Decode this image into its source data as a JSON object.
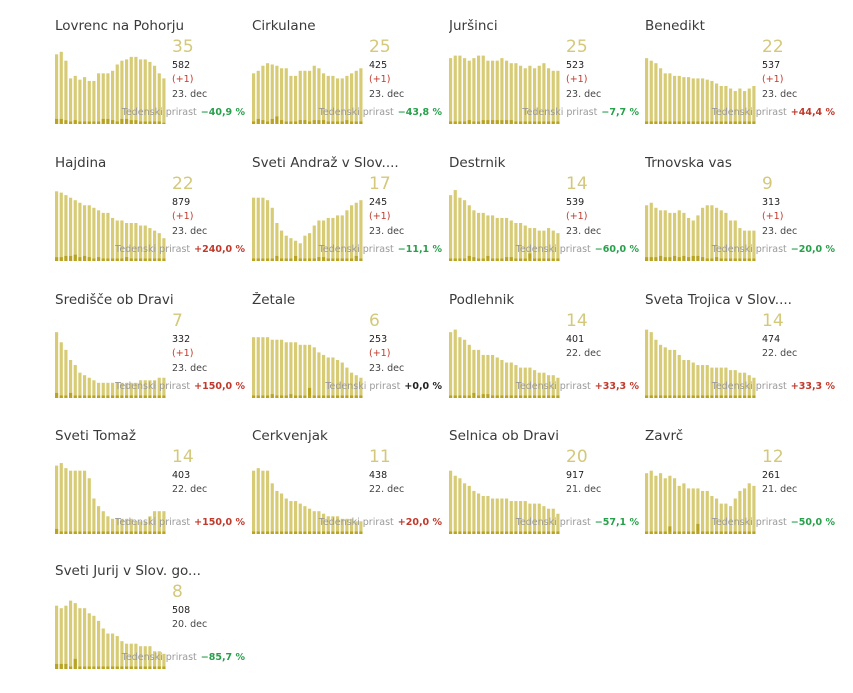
{
  "footer_label": "Tedenski prirast",
  "colors": {
    "bar": "#d8cb75",
    "bar_new": "#b8a322",
    "big_number": "#d4c87a",
    "positive": "#c0392b",
    "negative": "#27a04b"
  },
  "chart_data": [
    {
      "type": "bar",
      "title": "Lovrenc na Pohorju",
      "active": "35",
      "total": "582",
      "delta": "(+1)",
      "date": "23. dec",
      "weekly": "−40,9 %",
      "trend": "neg",
      "values": [
        55,
        57,
        50,
        36,
        38,
        35,
        37,
        34,
        34,
        40,
        40,
        40,
        42,
        47,
        50,
        51,
        53,
        53,
        51,
        51,
        49,
        46,
        40,
        36
      ],
      "daily": [
        4,
        4,
        3,
        2,
        3,
        2,
        2,
        2,
        2,
        2,
        4,
        4,
        3,
        2,
        4,
        4,
        3,
        3,
        2,
        2,
        2,
        2,
        2,
        1
      ]
    },
    {
      "type": "bar",
      "title": "Cirkulane",
      "active": "25",
      "total": "425",
      "delta": "(+1)",
      "date": "23. dec",
      "weekly": "−43,8 %",
      "trend": "neg",
      "values": [
        40,
        42,
        46,
        48,
        47,
        46,
        44,
        44,
        38,
        38,
        42,
        42,
        42,
        46,
        44,
        40,
        38,
        38,
        36,
        36,
        38,
        40,
        42,
        44
      ],
      "daily": [
        2,
        4,
        3,
        2,
        4,
        6,
        3,
        2,
        2,
        2,
        3,
        3,
        2,
        3,
        3,
        3,
        2,
        2,
        2,
        2,
        3,
        2,
        2,
        2
      ]
    },
    {
      "type": "bar",
      "title": "Juršinci",
      "active": "25",
      "total": "523",
      "delta": "(+1)",
      "date": "23. dec",
      "weekly": "−7,7 %",
      "trend": "neg",
      "values": [
        52,
        54,
        54,
        52,
        50,
        52,
        54,
        54,
        50,
        50,
        50,
        52,
        50,
        48,
        48,
        46,
        44,
        46,
        44,
        46,
        48,
        44,
        42,
        42
      ],
      "daily": [
        2,
        2,
        2,
        2,
        3,
        2,
        2,
        3,
        3,
        3,
        3,
        3,
        3,
        3,
        2,
        2,
        2,
        2,
        2,
        2,
        2,
        2,
        2,
        2
      ]
    },
    {
      "type": "bar",
      "title": "Benedikt",
      "active": "22",
      "total": "537",
      "delta": "(+1)",
      "date": "23. dec",
      "weekly": "+44,4 %",
      "trend": "pos",
      "values": [
        52,
        50,
        48,
        44,
        40,
        40,
        38,
        38,
        37,
        37,
        36,
        36,
        36,
        35,
        34,
        32,
        30,
        30,
        28,
        26,
        28,
        26,
        28,
        30
      ],
      "daily": [
        2,
        2,
        2,
        2,
        2,
        2,
        2,
        2,
        2,
        2,
        2,
        2,
        2,
        2,
        2,
        2,
        2,
        2,
        2,
        2,
        2,
        2,
        2,
        2
      ]
    },
    {
      "type": "bar",
      "title": "Hajdina",
      "active": "22",
      "total": "879",
      "delta": "(+1)",
      "date": "23. dec",
      "weekly": "+240,0 %",
      "trend": "pos",
      "values": [
        55,
        54,
        52,
        50,
        48,
        46,
        44,
        44,
        42,
        40,
        38,
        38,
        34,
        32,
        32,
        30,
        30,
        30,
        28,
        28,
        26,
        24,
        22,
        18
      ],
      "daily": [
        3,
        3,
        4,
        4,
        5,
        3,
        4,
        3,
        2,
        3,
        2,
        2,
        2,
        2,
        2,
        3,
        2,
        2,
        2,
        2,
        2,
        2,
        2,
        2
      ]
    },
    {
      "type": "bar",
      "title": "Sveti Andraž v Slov....",
      "active": "17",
      "total": "245",
      "delta": "(+1)",
      "date": "23. dec",
      "weekly": "−11,1 %",
      "trend": "neg",
      "values": [
        50,
        50,
        50,
        48,
        42,
        30,
        24,
        20,
        18,
        16,
        14,
        20,
        22,
        28,
        32,
        32,
        34,
        34,
        36,
        36,
        40,
        44,
        46,
        48
      ],
      "daily": [
        2,
        2,
        2,
        2,
        2,
        4,
        2,
        2,
        2,
        4,
        2,
        2,
        2,
        2,
        3,
        3,
        2,
        2,
        2,
        2,
        2,
        2,
        4,
        2
      ]
    },
    {
      "type": "bar",
      "title": "Destrnik",
      "active": "14",
      "total": "539",
      "delta": "(+1)",
      "date": "23. dec",
      "weekly": "−60,0 %",
      "trend": "neg",
      "values": [
        52,
        56,
        50,
        48,
        44,
        40,
        38,
        38,
        36,
        36,
        34,
        34,
        34,
        32,
        30,
        30,
        28,
        26,
        26,
        24,
        24,
        26,
        24,
        22
      ],
      "daily": [
        2,
        2,
        2,
        2,
        4,
        3,
        2,
        2,
        4,
        2,
        2,
        2,
        3,
        3,
        2,
        2,
        2,
        6,
        2,
        2,
        2,
        2,
        2,
        2
      ]
    },
    {
      "type": "bar",
      "title": "Trnovska vas",
      "active": "9",
      "total": "313",
      "delta": "(+1)",
      "date": "23. dec",
      "weekly": "−20,0 %",
      "trend": "neg",
      "values": [
        44,
        46,
        42,
        40,
        40,
        38,
        38,
        40,
        38,
        34,
        32,
        36,
        42,
        44,
        44,
        42,
        40,
        38,
        32,
        32,
        26,
        24,
        24,
        24
      ],
      "daily": [
        3,
        3,
        3,
        4,
        3,
        3,
        4,
        3,
        4,
        3,
        4,
        4,
        3,
        2,
        2,
        3,
        2,
        2,
        2,
        2,
        2,
        2,
        2,
        2
      ]
    },
    {
      "type": "bar",
      "title": "Središče ob Dravi",
      "active": "7",
      "total": "332",
      "delta": "(+1)",
      "date": "23. dec",
      "weekly": "+150,0 %",
      "trend": "pos",
      "values": [
        52,
        44,
        38,
        30,
        26,
        20,
        18,
        16,
        14,
        12,
        12,
        12,
        12,
        12,
        12,
        12,
        12,
        12,
        14,
        14,
        14,
        14,
        16,
        16
      ],
      "daily": [
        4,
        2,
        2,
        4,
        2,
        2,
        2,
        2,
        2,
        2,
        2,
        2,
        2,
        2,
        2,
        2,
        2,
        2,
        2,
        2,
        2,
        2,
        2,
        2
      ]
    },
    {
      "type": "bar",
      "title": "Žetale",
      "active": "6",
      "total": "253",
      "delta": "(+1)",
      "date": "23. dec",
      "weekly": "+0,0 %",
      "trend": "zero",
      "values": [
        48,
        48,
        48,
        48,
        46,
        46,
        46,
        44,
        44,
        44,
        42,
        42,
        42,
        40,
        36,
        34,
        32,
        32,
        30,
        28,
        24,
        20,
        18,
        16
      ],
      "daily": [
        2,
        2,
        2,
        2,
        3,
        2,
        2,
        2,
        3,
        2,
        2,
        2,
        8,
        2,
        2,
        2,
        2,
        2,
        2,
        2,
        2,
        2,
        2,
        2
      ]
    },
    {
      "type": "bar",
      "title": "Podlehnik",
      "active": "14",
      "total": "401",
      "delta": "",
      "date": "22. dec",
      "weekly": "+33,3 %",
      "trend": "pos",
      "values": [
        52,
        54,
        48,
        46,
        42,
        38,
        38,
        34,
        34,
        34,
        32,
        30,
        28,
        28,
        26,
        24,
        24,
        24,
        22,
        20,
        20,
        18,
        18,
        16
      ],
      "daily": [
        2,
        2,
        2,
        2,
        2,
        4,
        2,
        3,
        3,
        2,
        2,
        2,
        2,
        2,
        2,
        2,
        2,
        2,
        2,
        2,
        2,
        2,
        2,
        2
      ]
    },
    {
      "type": "bar",
      "title": "Sveta Trojica v Slov....",
      "active": "14",
      "total": "474",
      "delta": "",
      "date": "22. dec",
      "weekly": "+33,3 %",
      "trend": "pos",
      "values": [
        54,
        52,
        46,
        42,
        40,
        38,
        38,
        34,
        30,
        30,
        28,
        26,
        26,
        26,
        24,
        24,
        24,
        24,
        22,
        22,
        20,
        20,
        18,
        16
      ],
      "daily": [
        2,
        2,
        2,
        2,
        2,
        2,
        2,
        2,
        2,
        2,
        2,
        2,
        2,
        2,
        2,
        2,
        2,
        2,
        2,
        2,
        2,
        2,
        2,
        2
      ]
    },
    {
      "type": "bar",
      "title": "Sveti Tomaž",
      "active": "14",
      "total": "403",
      "delta": "",
      "date": "22. dec",
      "weekly": "+150,0 %",
      "trend": "pos",
      "values": [
        54,
        56,
        52,
        50,
        50,
        50,
        50,
        44,
        28,
        22,
        18,
        14,
        12,
        12,
        12,
        12,
        12,
        10,
        10,
        10,
        14,
        18,
        18,
        18
      ],
      "daily": [
        4,
        2,
        2,
        2,
        2,
        2,
        2,
        2,
        2,
        2,
        2,
        2,
        2,
        2,
        2,
        2,
        2,
        2,
        2,
        2,
        2,
        2,
        2,
        2
      ]
    },
    {
      "type": "bar",
      "title": "Cerkvenjak",
      "active": "11",
      "total": "438",
      "delta": "",
      "date": "22. dec",
      "weekly": "+20,0 %",
      "trend": "pos",
      "values": [
        50,
        52,
        50,
        50,
        40,
        34,
        32,
        28,
        26,
        26,
        24,
        22,
        20,
        18,
        18,
        16,
        14,
        14,
        14,
        12,
        12,
        12,
        10,
        10
      ],
      "daily": [
        2,
        2,
        2,
        2,
        2,
        2,
        2,
        2,
        2,
        2,
        2,
        2,
        2,
        2,
        2,
        2,
        2,
        2,
        2,
        2,
        2,
        2,
        2,
        2
      ]
    },
    {
      "type": "bar",
      "title": "Selnica ob Dravi",
      "active": "20",
      "total": "917",
      "delta": "",
      "date": "21. dec",
      "weekly": "−57,1 %",
      "trend": "neg",
      "values": [
        50,
        46,
        44,
        40,
        38,
        34,
        32,
        30,
        30,
        28,
        28,
        28,
        28,
        26,
        26,
        26,
        26,
        24,
        24,
        24,
        22,
        20,
        20,
        16
      ],
      "daily": [
        2,
        2,
        2,
        2,
        2,
        2,
        2,
        2,
        2,
        2,
        2,
        2,
        2,
        2,
        2,
        2,
        2,
        2,
        2,
        2,
        2,
        2,
        2,
        2
      ]
    },
    {
      "type": "bar",
      "title": "Zavrč",
      "active": "12",
      "total": "261",
      "delta": "",
      "date": "21. dec",
      "weekly": "−50,0 %",
      "trend": "neg",
      "values": [
        48,
        50,
        46,
        48,
        44,
        46,
        44,
        38,
        40,
        36,
        36,
        36,
        34,
        34,
        30,
        28,
        24,
        24,
        22,
        28,
        34,
        36,
        40,
        38
      ],
      "daily": [
        2,
        2,
        2,
        2,
        2,
        6,
        2,
        2,
        2,
        2,
        2,
        8,
        2,
        2,
        2,
        2,
        2,
        2,
        2,
        2,
        2,
        2,
        2,
        2
      ]
    },
    {
      "type": "bar",
      "title": "Sveti Jurij v Slov. go...",
      "active": "8",
      "total": "508",
      "delta": "",
      "date": "20. dec",
      "weekly": "−85,7 %",
      "trend": "neg",
      "values": [
        50,
        48,
        50,
        54,
        52,
        48,
        48,
        44,
        42,
        38,
        32,
        28,
        28,
        26,
        22,
        20,
        20,
        20,
        18,
        18,
        18,
        14,
        14,
        12
      ],
      "daily": [
        4,
        4,
        4,
        2,
        8,
        2,
        2,
        2,
        2,
        2,
        2,
        2,
        2,
        2,
        2,
        2,
        2,
        2,
        2,
        2,
        2,
        2,
        2,
        2
      ]
    }
  ]
}
